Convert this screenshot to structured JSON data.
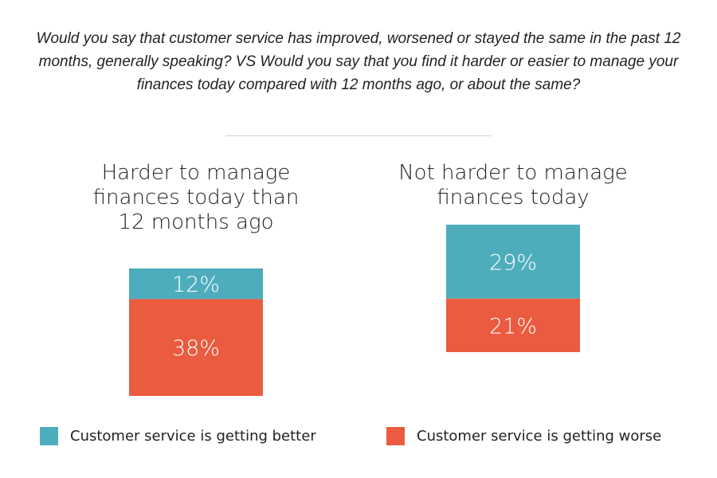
{
  "question": "Would you say that customer service has improved, worsened or stayed the same in the past 12 months, generally speaking? VS Would you say that you find it harder or easier to manage your finances today compared with 12 months ago, or about the same?",
  "colors": {
    "better": "#4DADBD",
    "worse": "#EA5B3F"
  },
  "chart_data": {
    "type": "bar",
    "stacked": true,
    "categories": [
      "Harder to manage finances today than 12 months ago",
      "Not harder to manage finances today"
    ],
    "series": [
      {
        "name": "Customer service is getting better",
        "values": [
          12,
          29
        ],
        "labels": [
          "12%",
          "29%"
        ]
      },
      {
        "name": "Customer service is getting worse",
        "values": [
          38,
          21
        ],
        "labels": [
          "38%",
          "21%"
        ]
      }
    ],
    "unit": "%",
    "legend": "bottom"
  }
}
